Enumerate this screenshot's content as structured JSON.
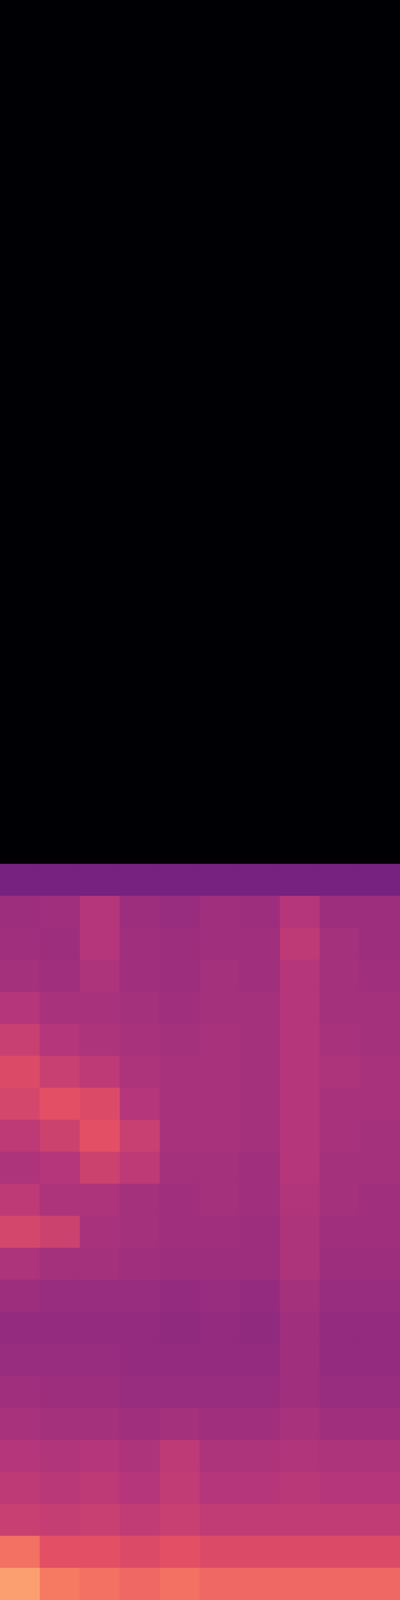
{
  "chart_data": {
    "type": "heatmap",
    "tick_labels": false,
    "grid": false,
    "zlim": [
      0,
      100
    ],
    "cells": [
      [
        0,
        0,
        0,
        0,
        0,
        0,
        0,
        0,
        0,
        0
      ],
      [
        0,
        0,
        0,
        0,
        0,
        0,
        0,
        0,
        0,
        0
      ],
      [
        0,
        0,
        0,
        0,
        0,
        0,
        0,
        0,
        0,
        0
      ],
      [
        0,
        0,
        0,
        0,
        0,
        0,
        0,
        0,
        0,
        0
      ],
      [
        0,
        0,
        0,
        0,
        0,
        0,
        0,
        0,
        0,
        0
      ],
      [
        0,
        0,
        0,
        0,
        0,
        0,
        0,
        0,
        0,
        0
      ],
      [
        0,
        0,
        0,
        0,
        0,
        0,
        0,
        0,
        0,
        0
      ],
      [
        0,
        0,
        0,
        0,
        0,
        0,
        0,
        0,
        0,
        0
      ],
      [
        0,
        0,
        0,
        0,
        0,
        0,
        0,
        0,
        0,
        0
      ],
      [
        0,
        0,
        0,
        0,
        0,
        0,
        0,
        0,
        0,
        0
      ],
      [
        0,
        0,
        0,
        0,
        0,
        0,
        0,
        0,
        0,
        0
      ],
      [
        0,
        0,
        0,
        0,
        0,
        0,
        0,
        0,
        0,
        0
      ],
      [
        0,
        0,
        0,
        0,
        0,
        0,
        0,
        0,
        0,
        0
      ],
      [
        0,
        0,
        0,
        0,
        0,
        0,
        0,
        0,
        0,
        0
      ],
      [
        0,
        0,
        0,
        0,
        0,
        0,
        0,
        0,
        0,
        0
      ],
      [
        0,
        0,
        0,
        0,
        0,
        0,
        0,
        0,
        0,
        0
      ],
      [
        0,
        0,
        0,
        0,
        0,
        0,
        0,
        0,
        0,
        0
      ],
      [
        0,
        0,
        0,
        0,
        0,
        0,
        0,
        0,
        0,
        0
      ],
      [
        0,
        0,
        0,
        0,
        0,
        0,
        0,
        0,
        0,
        0
      ],
      [
        0,
        0,
        0,
        0,
        0,
        0,
        0,
        0,
        0,
        0
      ],
      [
        0,
        0,
        0,
        0,
        0,
        0,
        0,
        0,
        0,
        0
      ],
      [
        0,
        0,
        0,
        0,
        0,
        0,
        0,
        0,
        0,
        0
      ],
      [
        0,
        0,
        0,
        0,
        0,
        0,
        0,
        0,
        0,
        0
      ],
      [
        0,
        0,
        0,
        0,
        0,
        0,
        0,
        0,
        0,
        0
      ],
      [
        0,
        0,
        0,
        0,
        0,
        0,
        0,
        0,
        0,
        0
      ],
      [
        0,
        0,
        0,
        0,
        0,
        0,
        0,
        0,
        0,
        0
      ],
      [
        0,
        0,
        0,
        0,
        0,
        0,
        0,
        0,
        0,
        0
      ],
      [
        35,
        35,
        35,
        35,
        35,
        35,
        35,
        35,
        35,
        35
      ],
      [
        44,
        45,
        50,
        44,
        43,
        45,
        44,
        50,
        44,
        44
      ],
      [
        45,
        44,
        50,
        45,
        44,
        45,
        45,
        52,
        46,
        44
      ],
      [
        46,
        45,
        48,
        45,
        44,
        46,
        45,
        50,
        46,
        45
      ],
      [
        50,
        47,
        47,
        46,
        45,
        46,
        46,
        50,
        46,
        46
      ],
      [
        55,
        50,
        48,
        47,
        46,
        47,
        46,
        50,
        47,
        46
      ],
      [
        60,
        55,
        52,
        48,
        47,
        47,
        46,
        50,
        48,
        47
      ],
      [
        58,
        62,
        60,
        50,
        47,
        47,
        46,
        50,
        47,
        47
      ],
      [
        52,
        56,
        62,
        55,
        47,
        47,
        46,
        50,
        47,
        46
      ],
      [
        48,
        50,
        56,
        52,
        46,
        46,
        45,
        50,
        46,
        46
      ],
      [
        52,
        48,
        48,
        46,
        45,
        46,
        45,
        49,
        46,
        45
      ],
      [
        58,
        56,
        47,
        46,
        45,
        45,
        44,
        48,
        45,
        45
      ],
      [
        48,
        46,
        46,
        45,
        44,
        44,
        44,
        48,
        44,
        44
      ],
      [
        44,
        43,
        43,
        43,
        42,
        43,
        42,
        46,
        43,
        43
      ],
      [
        42,
        42,
        42,
        42,
        41,
        42,
        41,
        45,
        42,
        42
      ],
      [
        43,
        43,
        43,
        42,
        42,
        42,
        42,
        45,
        42,
        42
      ],
      [
        45,
        44,
        44,
        43,
        43,
        43,
        43,
        45,
        43,
        43
      ],
      [
        47,
        46,
        46,
        45,
        46,
        45,
        45,
        47,
        45,
        45
      ],
      [
        50,
        49,
        50,
        48,
        52,
        48,
        48,
        49,
        48,
        48
      ],
      [
        52,
        51,
        52,
        50,
        53,
        50,
        50,
        51,
        50,
        50
      ],
      [
        55,
        54,
        55,
        53,
        55,
        53,
        53,
        53,
        53,
        53
      ],
      [
        70,
        62,
        62,
        60,
        62,
        60,
        60,
        60,
        60,
        60
      ],
      [
        80,
        72,
        70,
        68,
        70,
        68,
        68,
        68,
        68,
        68
      ]
    ]
  }
}
